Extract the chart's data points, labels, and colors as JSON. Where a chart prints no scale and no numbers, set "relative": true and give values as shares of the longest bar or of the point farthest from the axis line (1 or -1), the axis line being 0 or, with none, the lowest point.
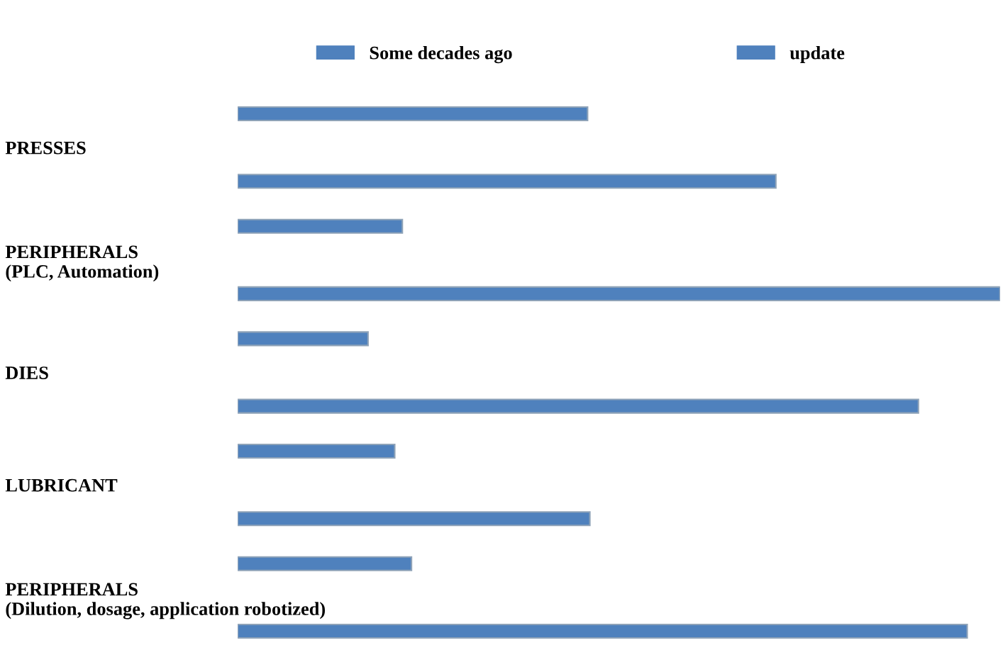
{
  "chart_data": {
    "type": "bar",
    "orientation": "horizontal",
    "relative": true,
    "legend": "top",
    "categories": [
      "PRESSES",
      "PERIPHERALS\n(PLC, Automation)",
      "DIES",
      "LUBRICANT",
      "PERIPHERALS\n(Dilution, dosage, application robotized)"
    ],
    "series": [
      {
        "name": "Some decades ago",
        "color": "#4f81bd",
        "values": [
          0.459,
          0.216,
          0.171,
          0.206,
          0.228
        ]
      },
      {
        "name": "update",
        "color": "#4f81bd",
        "values": [
          0.706,
          1.0,
          0.893,
          0.462,
          0.957
        ]
      }
    ]
  }
}
